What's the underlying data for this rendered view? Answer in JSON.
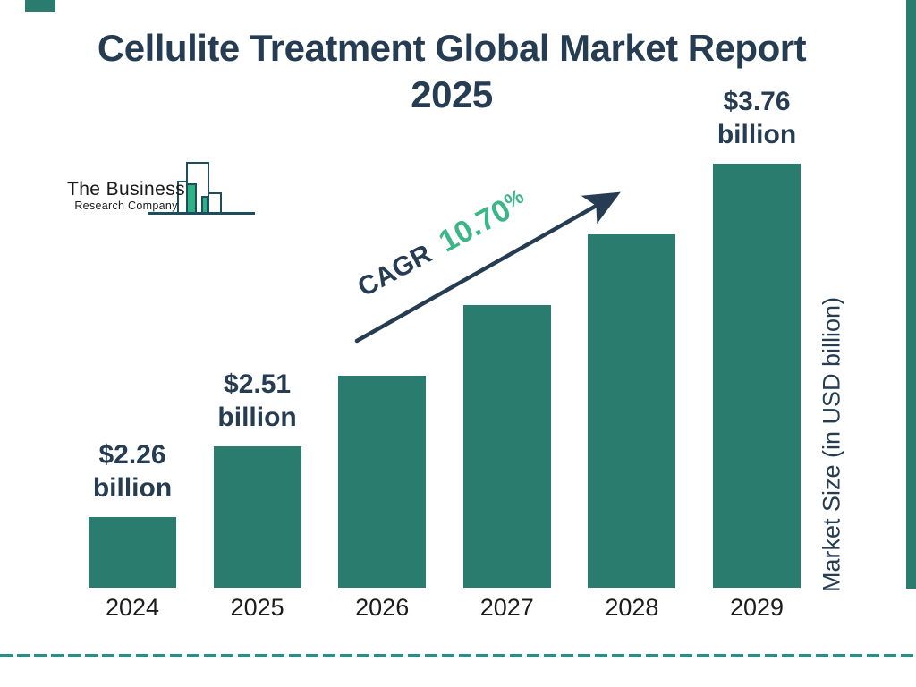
{
  "page": {
    "title_line1": "Cellulite Treatment Global Market Report",
    "title_line2": "2025"
  },
  "logo": {
    "name": "The Business",
    "subname": "Research Company"
  },
  "annotations": {
    "cagr_label": "CAGR",
    "cagr_value": "10.70",
    "cagr_percent_sign": "%"
  },
  "axis": {
    "y_label": "Market Size (in USD billion)"
  },
  "colors": {
    "bar_teal": "#2A7D6E",
    "navy_text": "#253C52",
    "cagr_green": "#3BB687",
    "dashed_rule_teal": "#2E8C8A",
    "logo_outline": "#1E4E5C",
    "logo_green": "#2DB383",
    "year_text": "#1C1C1C"
  },
  "chart_data": {
    "type": "bar",
    "title": "Cellulite Treatment Global Market Report 2025",
    "categories": [
      "2024",
      "2025",
      "2026",
      "2027",
      "2028",
      "2029"
    ],
    "series": [
      {
        "name": "Market Size (in USD billion)",
        "values": [
          2.26,
          2.51,
          null,
          null,
          null,
          3.76
        ]
      }
    ],
    "value_labels": [
      [
        "$2.26",
        "billion"
      ],
      [
        "$2.51",
        "billion"
      ],
      null,
      null,
      null,
      [
        "$3.76",
        "billion"
      ]
    ],
    "cagr": "10.70%",
    "xlabel": "",
    "ylabel": "Market Size (in USD billion)",
    "legend_position": "none",
    "grid": false
  }
}
